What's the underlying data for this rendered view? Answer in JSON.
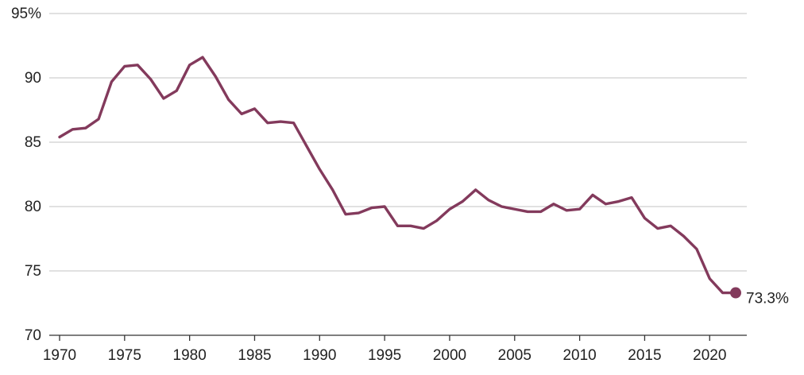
{
  "chart_data": {
    "type": "line",
    "title": "",
    "xlabel": "",
    "ylabel": "",
    "xlim": [
      1970,
      2022
    ],
    "ylim": [
      70,
      95
    ],
    "y_ticks": [
      {
        "value": 95,
        "label": "95%"
      },
      {
        "value": 90,
        "label": "90"
      },
      {
        "value": 85,
        "label": "85"
      },
      {
        "value": 80,
        "label": "80"
      },
      {
        "value": 75,
        "label": "75"
      },
      {
        "value": 70,
        "label": "70"
      }
    ],
    "x_ticks": [
      {
        "value": 1970,
        "label": "1970"
      },
      {
        "value": 1975,
        "label": "1975"
      },
      {
        "value": 1980,
        "label": "1980"
      },
      {
        "value": 1985,
        "label": "1985"
      },
      {
        "value": 1990,
        "label": "1990"
      },
      {
        "value": 1995,
        "label": "1995"
      },
      {
        "value": 2000,
        "label": "2000"
      },
      {
        "value": 2005,
        "label": "2005"
      },
      {
        "value": 2010,
        "label": "2010"
      },
      {
        "value": 2015,
        "label": "2015"
      },
      {
        "value": 2020,
        "label": "2020"
      }
    ],
    "grid": true,
    "series": [
      {
        "color": "#833a5c",
        "x": [
          1970,
          1971,
          1972,
          1973,
          1974,
          1975,
          1976,
          1977,
          1978,
          1979,
          1980,
          1981,
          1982,
          1983,
          1984,
          1985,
          1986,
          1987,
          1988,
          1989,
          1990,
          1991,
          1992,
          1993,
          1994,
          1995,
          1996,
          1997,
          1998,
          1999,
          2000,
          2001,
          2002,
          2003,
          2004,
          2005,
          2006,
          2007,
          2008,
          2009,
          2010,
          2011,
          2012,
          2013,
          2014,
          2015,
          2016,
          2017,
          2018,
          2019,
          2020,
          2021,
          2022
        ],
        "y": [
          85.4,
          86.0,
          86.1,
          86.8,
          89.7,
          90.9,
          91.0,
          89.9,
          88.4,
          89.0,
          91.0,
          91.6,
          90.1,
          88.3,
          87.2,
          87.6,
          86.5,
          86.6,
          86.5,
          84.7,
          82.9,
          81.3,
          79.4,
          79.5,
          79.9,
          80.0,
          78.5,
          78.5,
          78.3,
          78.9,
          79.8,
          80.4,
          81.3,
          80.5,
          80.0,
          79.8,
          79.6,
          79.6,
          80.2,
          79.7,
          79.8,
          80.9,
          80.2,
          80.4,
          80.7,
          79.1,
          78.3,
          78.5,
          77.7,
          76.7,
          74.4,
          73.3,
          73.3
        ]
      }
    ],
    "end_marker": {
      "x": 2022,
      "y": 73.3,
      "label": "73.3%"
    }
  }
}
